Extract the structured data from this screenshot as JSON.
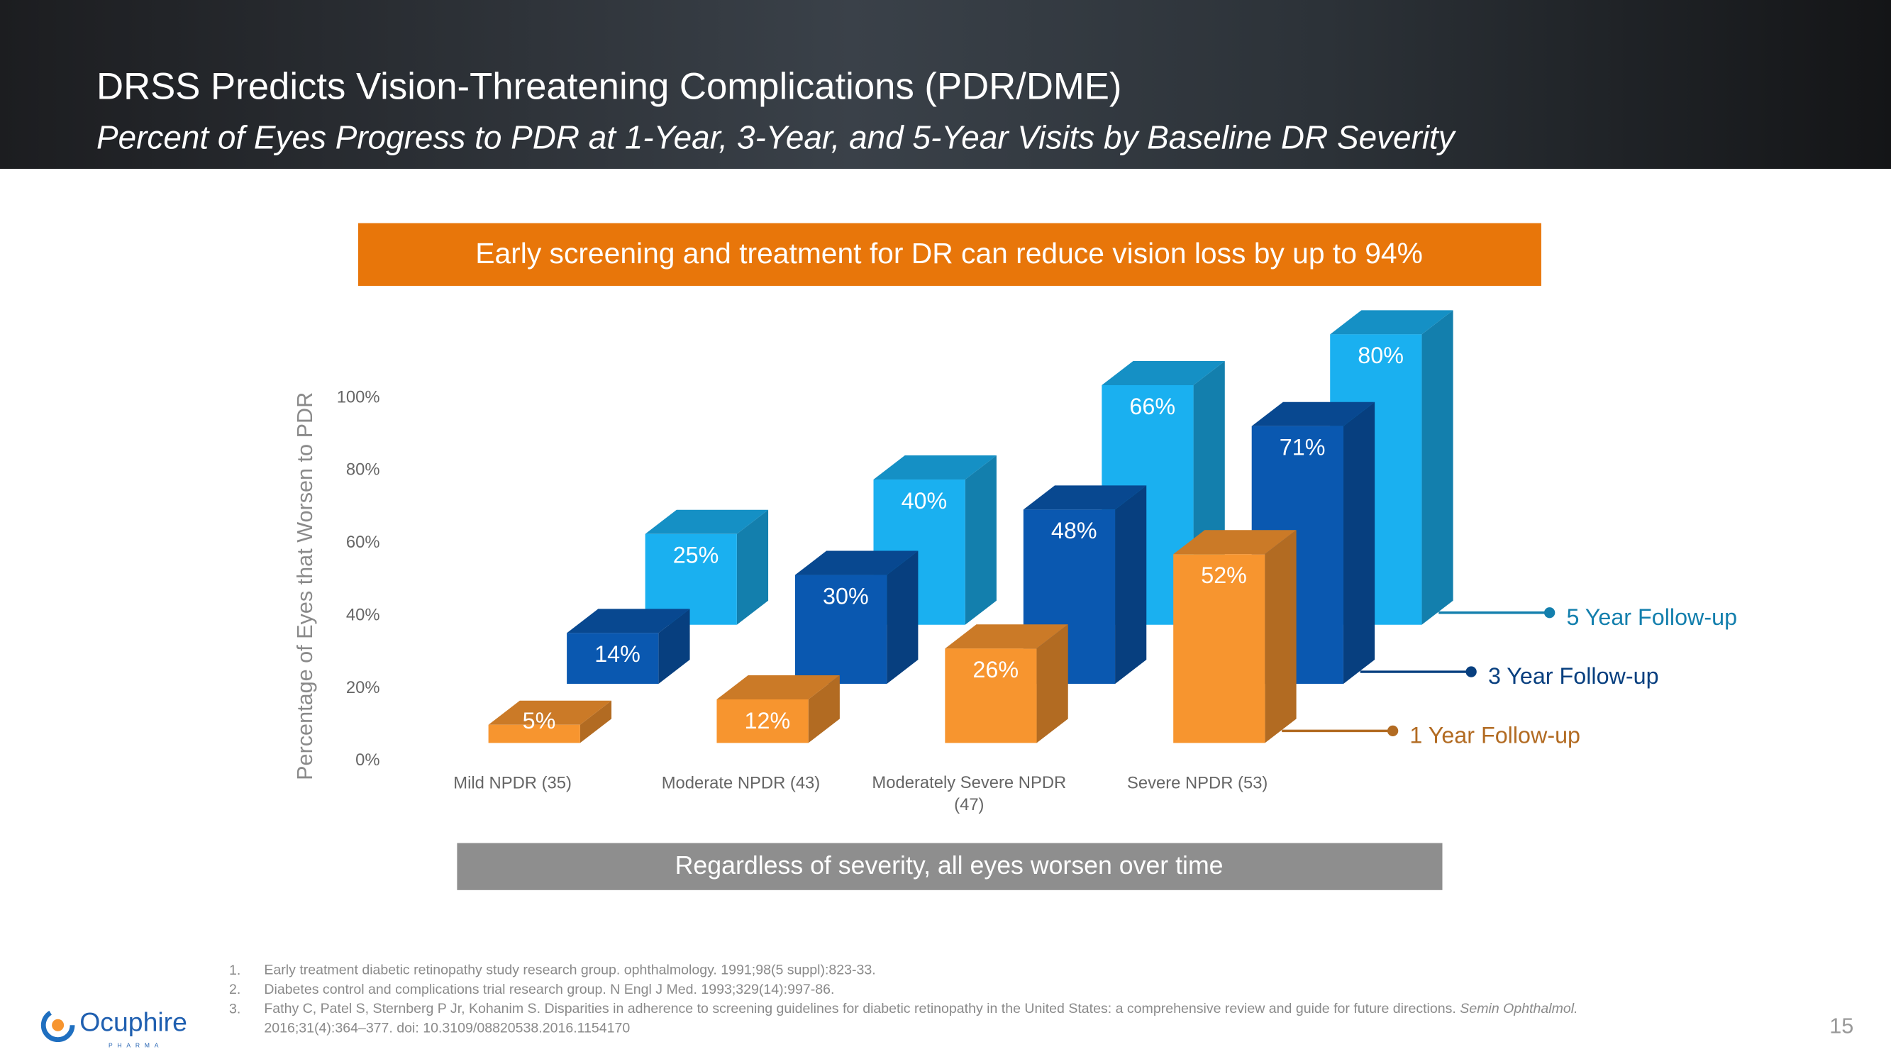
{
  "header": {
    "title": "DRSS Predicts Vision-Threatening Complications (PDR/DME)",
    "subtitle": "Percent of Eyes Progress to PDR at 1-Year, 3-Year, and 5-Year Visits by Baseline DR Severity"
  },
  "top_banner": "Early screening and treatment for DR can reduce vision loss by up to 94%",
  "bottom_banner": "Regardless of severity, all eyes worsen over time",
  "chart_data": {
    "type": "bar3d",
    "y_label": "Percentage of Eyes that Worsen to PDR",
    "categories": [
      "Mild NPDR (35)",
      "Moderate NPDR (43)",
      "Moderately Severe NPDR (47)",
      "Severe NPDR (53)"
    ],
    "series": [
      {
        "name": "1 Year Follow-up",
        "color": "#f7952f",
        "values": [
          5,
          12,
          26,
          52
        ],
        "value_labels": [
          "5%",
          "12%",
          "26%",
          "52%"
        ]
      },
      {
        "name": "3 Year Follow-up",
        "color": "#0a58b0",
        "values": [
          14,
          30,
          48,
          71
        ],
        "value_labels": [
          "14%",
          "30%",
          "48%",
          "71%"
        ]
      },
      {
        "name": "5 Year Follow-up",
        "color": "#1ab0f0",
        "values": [
          25,
          40,
          66,
          80
        ],
        "value_labels": [
          "25%",
          "40%",
          "66%",
          "80%"
        ]
      }
    ],
    "ylim": [
      0,
      100
    ],
    "yticks": [
      {
        "value": 0,
        "label": "0%"
      },
      {
        "value": 20,
        "label": "20%"
      },
      {
        "value": 40,
        "label": "40%"
      },
      {
        "value": 60,
        "label": "60%"
      },
      {
        "value": 80,
        "label": "80%"
      },
      {
        "value": 100,
        "label": "100%"
      }
    ]
  },
  "footnotes": [
    {
      "number": "1.",
      "text": "Early treatment diabetic retinopathy study research group. ophthalmology. 1991;98(5 suppl):823-33."
    },
    {
      "number": "2.",
      "text": "Diabetes control and complications trial research group. N Engl J Med. 1993;329(14):997-86."
    },
    {
      "number": "3.",
      "text": "Fathy C, Patel S, Sternberg P Jr, Kohanim S. Disparities in adherence to screening guidelines for diabetic retinopathy in the United States: a comprehensive review and guide for future directions.",
      "journal": "Semin Ophthalmol.",
      "continuation": "2016;31(4):364–377. doi: 10.3109/08820538.2016.1154170"
    }
  ],
  "logo": {
    "name": "Ocuphire",
    "tagline": "PHARMA"
  },
  "page_number": "15"
}
